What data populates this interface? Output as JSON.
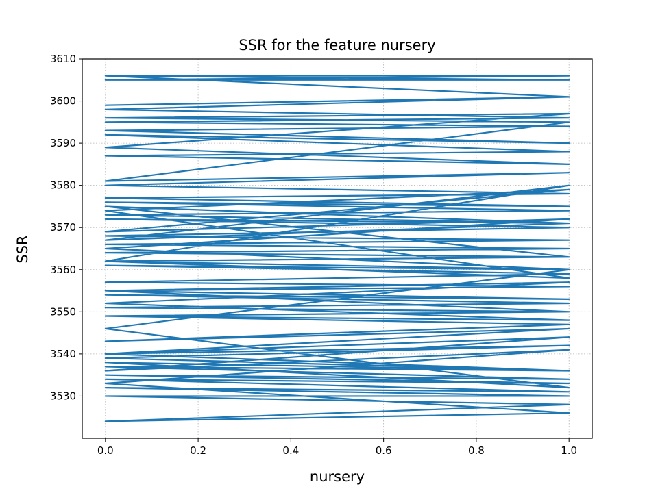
{
  "chart_data": {
    "type": "line",
    "title": "SSR for the feature nursery",
    "xlabel": "nursery",
    "ylabel": "SSR",
    "xlim": [
      -0.05,
      1.05
    ],
    "ylim": [
      3520,
      3610
    ],
    "xticks": [
      0.0,
      0.2,
      0.4,
      0.6,
      0.8,
      1.0
    ],
    "xtick_labels": [
      "0.0",
      "0.2",
      "0.4",
      "0.6",
      "0.8",
      "1.0"
    ],
    "yticks": [
      3530,
      3540,
      3550,
      3560,
      3570,
      3580,
      3590,
      3600,
      3610
    ],
    "ytick_labels": [
      "3530",
      "3540",
      "3550",
      "3560",
      "3570",
      "3580",
      "3590",
      "3600",
      "3610"
    ],
    "grid": true,
    "grid_style": "dotted",
    "legend": "none",
    "series": [
      {
        "color": "#1f77b4",
        "x": [
          0,
          1,
          0,
          1,
          0,
          1,
          0,
          1,
          0,
          1,
          0,
          1,
          0,
          1,
          0,
          1,
          0,
          1,
          0,
          1,
          0,
          1,
          0,
          1,
          0,
          1,
          0,
          1,
          0,
          1,
          0,
          1,
          0,
          1,
          0,
          1,
          0,
          1,
          0,
          1,
          0,
          1,
          0,
          1,
          0,
          1,
          0,
          1,
          0,
          1,
          0,
          1,
          0,
          1,
          0,
          1,
          0,
          1,
          0,
          1,
          0,
          1,
          0,
          1,
          0,
          1,
          0,
          1,
          0,
          1,
          0,
          1,
          0,
          1,
          0,
          1,
          0,
          1,
          0,
          1,
          0,
          1,
          0,
          1,
          0,
          1,
          0,
          1,
          0,
          1,
          0,
          1,
          0,
          1,
          0,
          1,
          0,
          1,
          0,
          1
        ],
        "y": [
          3606,
          3606,
          3605,
          3605,
          3606,
          3601,
          3599,
          3601,
          3598,
          3596,
          3595,
          3594,
          3593,
          3590,
          3592,
          3588,
          3587,
          3585,
          3589,
          3597,
          3596,
          3595,
          3581,
          3583,
          3580,
          3578,
          3577,
          3575,
          3576,
          3574,
          3573,
          3571,
          3572,
          3570,
          3568,
          3567,
          3566,
          3565,
          3564,
          3563,
          3562,
          3560,
          3561,
          3559,
          3557,
          3556,
          3555,
          3553,
          3554,
          3552,
          3551,
          3550,
          3549,
          3548,
          3552,
          3557,
          3555,
          3550,
          3549,
          3547,
          3543,
          3546,
          3540,
          3542,
          3539,
          3536,
          3537,
          3534,
          3535,
          3533,
          3534,
          3531,
          3532,
          3530,
          3530,
          3528,
          3524,
          3526,
          3533,
          3541,
          3536,
          3544,
          3540,
          3536,
          3538,
          3532,
          3546,
          3560,
          3565,
          3572,
          3569,
          3579,
          3574,
          3558,
          3562,
          3580,
          3567,
          3571,
          3575,
          3563
        ]
      }
    ]
  }
}
